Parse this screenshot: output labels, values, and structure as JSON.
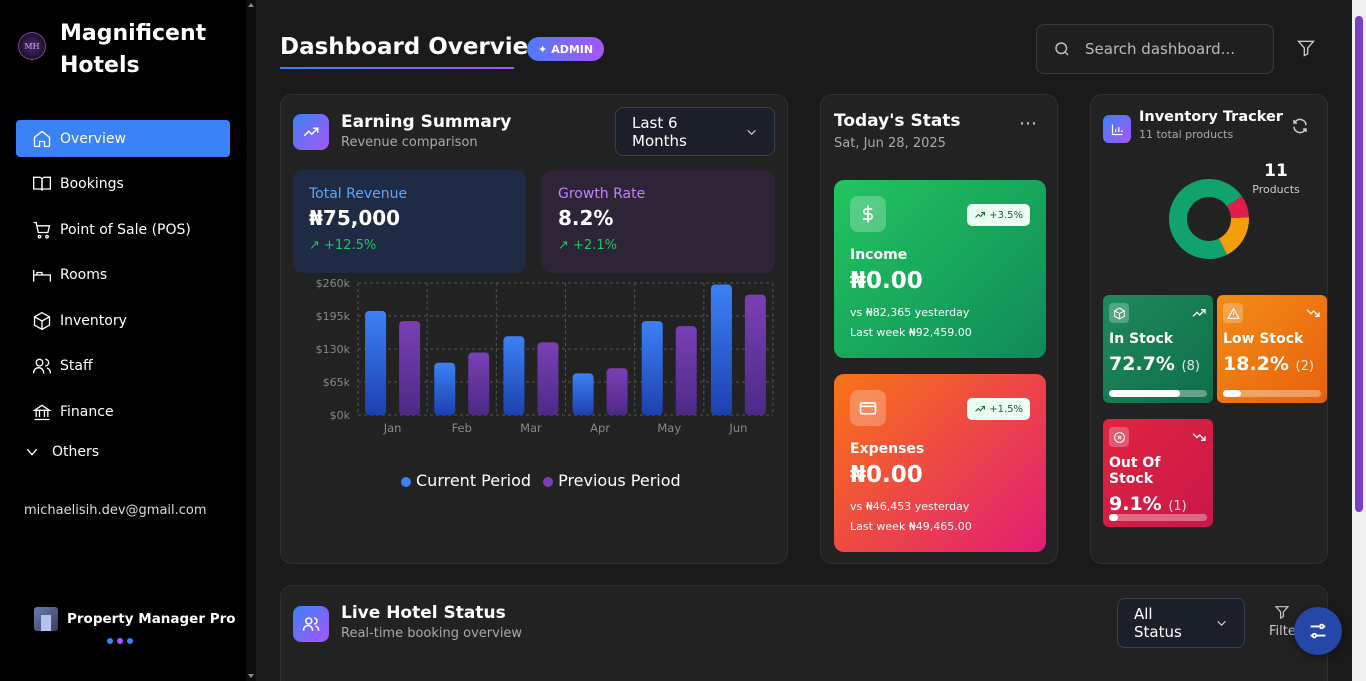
{
  "sidebar": {
    "brand": "Magnificent Hotels",
    "logo_text": "MH",
    "items": [
      {
        "label": "Overview",
        "icon": "home-icon",
        "active": true
      },
      {
        "label": "Bookings",
        "icon": "book-icon"
      },
      {
        "label": "Point of Sale (POS)",
        "icon": "cart-icon"
      },
      {
        "label": "Rooms",
        "icon": "bed-icon"
      },
      {
        "label": "Inventory",
        "icon": "box-icon"
      },
      {
        "label": "Staff",
        "icon": "users-icon"
      },
      {
        "label": "Finance",
        "icon": "bank-icon"
      }
    ],
    "others_label": "Others",
    "email": "michaelisih.dev@gmail.com",
    "footer_label": "Property Manager Pro",
    "footer_dots": [
      "#3b82f6",
      "#a855f7",
      "#3b82f6"
    ]
  },
  "header": {
    "title": "Dashboard Overview",
    "badge": "ADMIN",
    "search_placeholder": "Search dashboard..."
  },
  "earning": {
    "title": "Earning Summary",
    "subtitle": "Revenue comparison",
    "period": "Last 6 Months",
    "total_revenue_label": "Total Revenue",
    "total_revenue_value": "₦75,000",
    "total_revenue_change": "+12.5%",
    "growth_label": "Growth Rate",
    "growth_value": "8.2%",
    "growth_change": "+2.1%",
    "legend_current": "Current Period",
    "legend_previous": "Previous Period"
  },
  "chart_data": {
    "type": "bar",
    "categories": [
      "Jan",
      "Feb",
      "Mar",
      "Apr",
      "May",
      "Jun"
    ],
    "y_ticks": [
      "$0k",
      "$65k",
      "$130k",
      "$195k",
      "$260k"
    ],
    "ylim": [
      0,
      260
    ],
    "grid": true,
    "legend_placement": "bottom",
    "series": [
      {
        "name": "Current Period",
        "color": "#3b82f6",
        "values": [
          205,
          103,
          155,
          82,
          185,
          257
        ]
      },
      {
        "name": "Previous Period",
        "color": "#7b3fb5",
        "values": [
          185,
          123,
          143,
          92,
          175,
          237
        ]
      }
    ]
  },
  "today": {
    "title": "Today's Stats",
    "date": "Sat, Jun 28, 2025",
    "income": {
      "label": "Income",
      "amount": "₦0.00",
      "change": "+3.5%",
      "vs": "vs ₦82,365 yesterday",
      "last_week": "Last week ₦92,459.00"
    },
    "expenses": {
      "label": "Expenses",
      "amount": "₦0.00",
      "change": "+1.5%",
      "vs": "vs ₦46,453 yesterday",
      "last_week": "Last week ₦49,465.00"
    }
  },
  "inventory": {
    "title": "Inventory Tracker",
    "subtitle": "11 total products",
    "count": "11",
    "count_label": "Products",
    "donut": [
      {
        "name": "In Stock",
        "value": 72.7,
        "color": "#10a36b"
      },
      {
        "name": "Low Stock",
        "value": 18.2,
        "color": "#f59e0b"
      },
      {
        "name": "Out Of Stock",
        "value": 9.1,
        "color": "#e11d48"
      }
    ],
    "in_stock": {
      "label": "In Stock",
      "pct": "72.7%",
      "count": "(8)",
      "fill": 0.727
    },
    "low_stock": {
      "label": "Low Stock",
      "pct": "18.2%",
      "count": "(2)",
      "fill": 0.182
    },
    "out_stock": {
      "label": "Out Of Stock",
      "pct": "9.1%",
      "count": "(1)",
      "fill": 0.091
    }
  },
  "live": {
    "title": "Live Hotel Status",
    "subtitle": "Real-time booking overview",
    "status_filter": "All Status",
    "filter_label": "Filte"
  }
}
